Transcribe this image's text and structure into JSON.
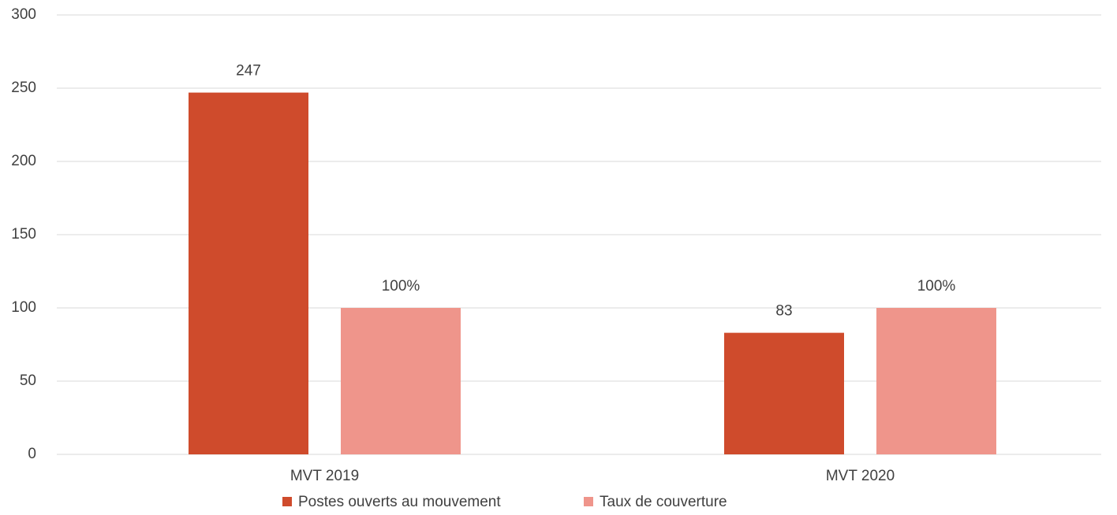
{
  "chart_data": {
    "type": "bar",
    "categories": [
      "MVT 2019",
      "MVT 2020"
    ],
    "series": [
      {
        "name": "Postes ouverts au mouvement",
        "color": "#cf4b2c",
        "values": [
          247,
          83
        ]
      },
      {
        "name": "Taux de couverture",
        "color": "#ef958b",
        "values": [
          100,
          100
        ],
        "value_labels": [
          "100%",
          "100%"
        ]
      }
    ],
    "ylim": [
      0,
      300
    ],
    "yticks": [
      0,
      50,
      100,
      150,
      200,
      250,
      300
    ],
    "grid": true,
    "legend": "bottom"
  }
}
